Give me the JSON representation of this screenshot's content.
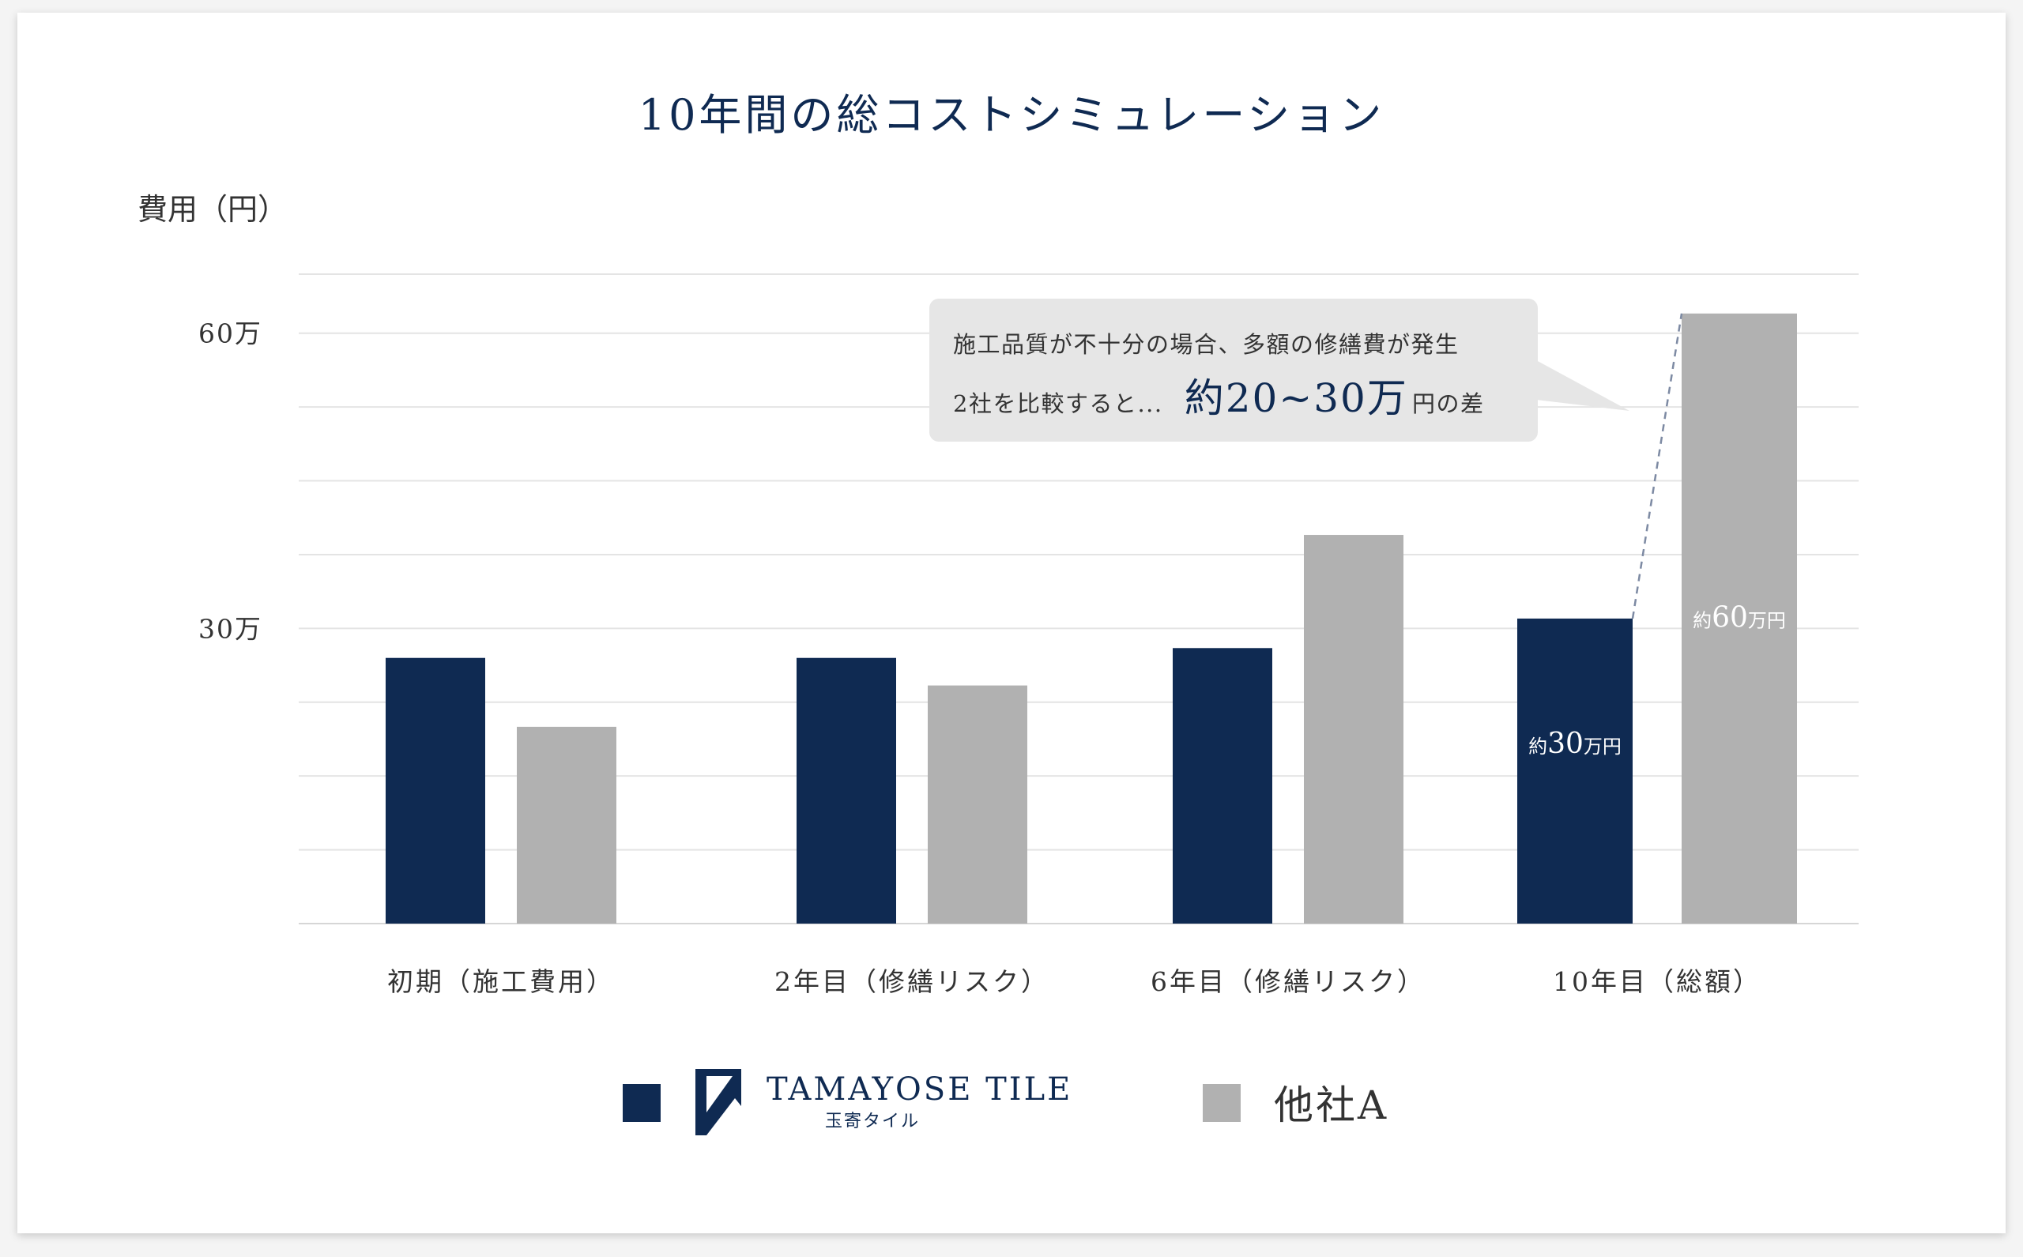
{
  "chart_data": {
    "type": "bar",
    "title": "10年間の総コストシミュレーション",
    "ylabel": "費用（円）",
    "ylim": [
      0,
      660000
    ],
    "yticks": [
      {
        "value": 300000,
        "label": "30万"
      },
      {
        "value": 600000,
        "label": "60万"
      }
    ],
    "grid": true,
    "categories": [
      "初期（施工費用）",
      "2年目（修繕リスク）",
      "6年目（修繕リスク）",
      "10年目（総額）"
    ],
    "series": [
      {
        "name": "TAMAYOSE TILE",
        "color": "#0f2a52",
        "values": [
          270000,
          270000,
          280000,
          310000
        ]
      },
      {
        "name": "他社A",
        "color": "#b1b1b1",
        "values": [
          200000,
          242000,
          395000,
          620000
        ]
      }
    ],
    "bar_labels": [
      {
        "series": 0,
        "index": 3,
        "prefix": "約",
        "number": "30",
        "suffix": "万円"
      },
      {
        "series": 1,
        "index": 3,
        "prefix": "約",
        "number": "60",
        "suffix": "万円"
      }
    ],
    "annotation": {
      "line1": "施工品質が不十分の場合、多額の修繕費が発生",
      "line2_prefix": "2社を比較すると...",
      "line2_emphasis": "約20~30万",
      "line2_suffix": "円の差"
    }
  },
  "legend": {
    "brand_name": "TAMAYOSE TILE",
    "brand_sub": "玉寄タイル",
    "competitor": "他社A"
  },
  "colors": {
    "navy": "#0f2a52",
    "gray": "#b1b1b1",
    "callout_bg": "#e6e6e6",
    "text": "#333333"
  }
}
